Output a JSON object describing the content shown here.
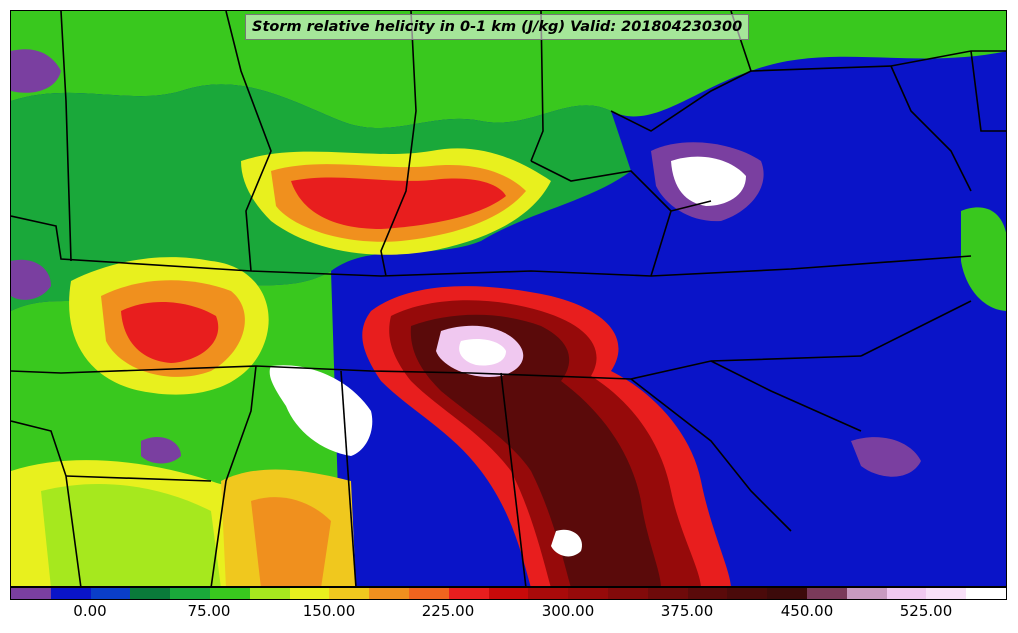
{
  "title": "Storm relative helicity in 0-1 km (J/kg) Valid: 201804230300",
  "colorbar": {
    "colors": [
      "#7a3fa0",
      "#0a14c8",
      "#0a3ec8",
      "#0a7a3a",
      "#1aa83a",
      "#39c81e",
      "#a6e81e",
      "#e8f01e",
      "#f0c81e",
      "#f0901e",
      "#f0641e",
      "#e81e1e",
      "#c80a0a",
      "#a80a0a",
      "#960a0a",
      "#820a0a",
      "#6e0a0a",
      "#5a0a0a",
      "#4a0a0a",
      "#3c0a0a",
      "#7a3a5a",
      "#c89ac0",
      "#f0c8f0",
      "#f8e0f8",
      "#ffffff"
    ],
    "tick_labels": [
      "0.00",
      "75.00",
      "150.00",
      "225.00",
      "300.00",
      "375.00",
      "450.00",
      "525.00"
    ]
  }
}
